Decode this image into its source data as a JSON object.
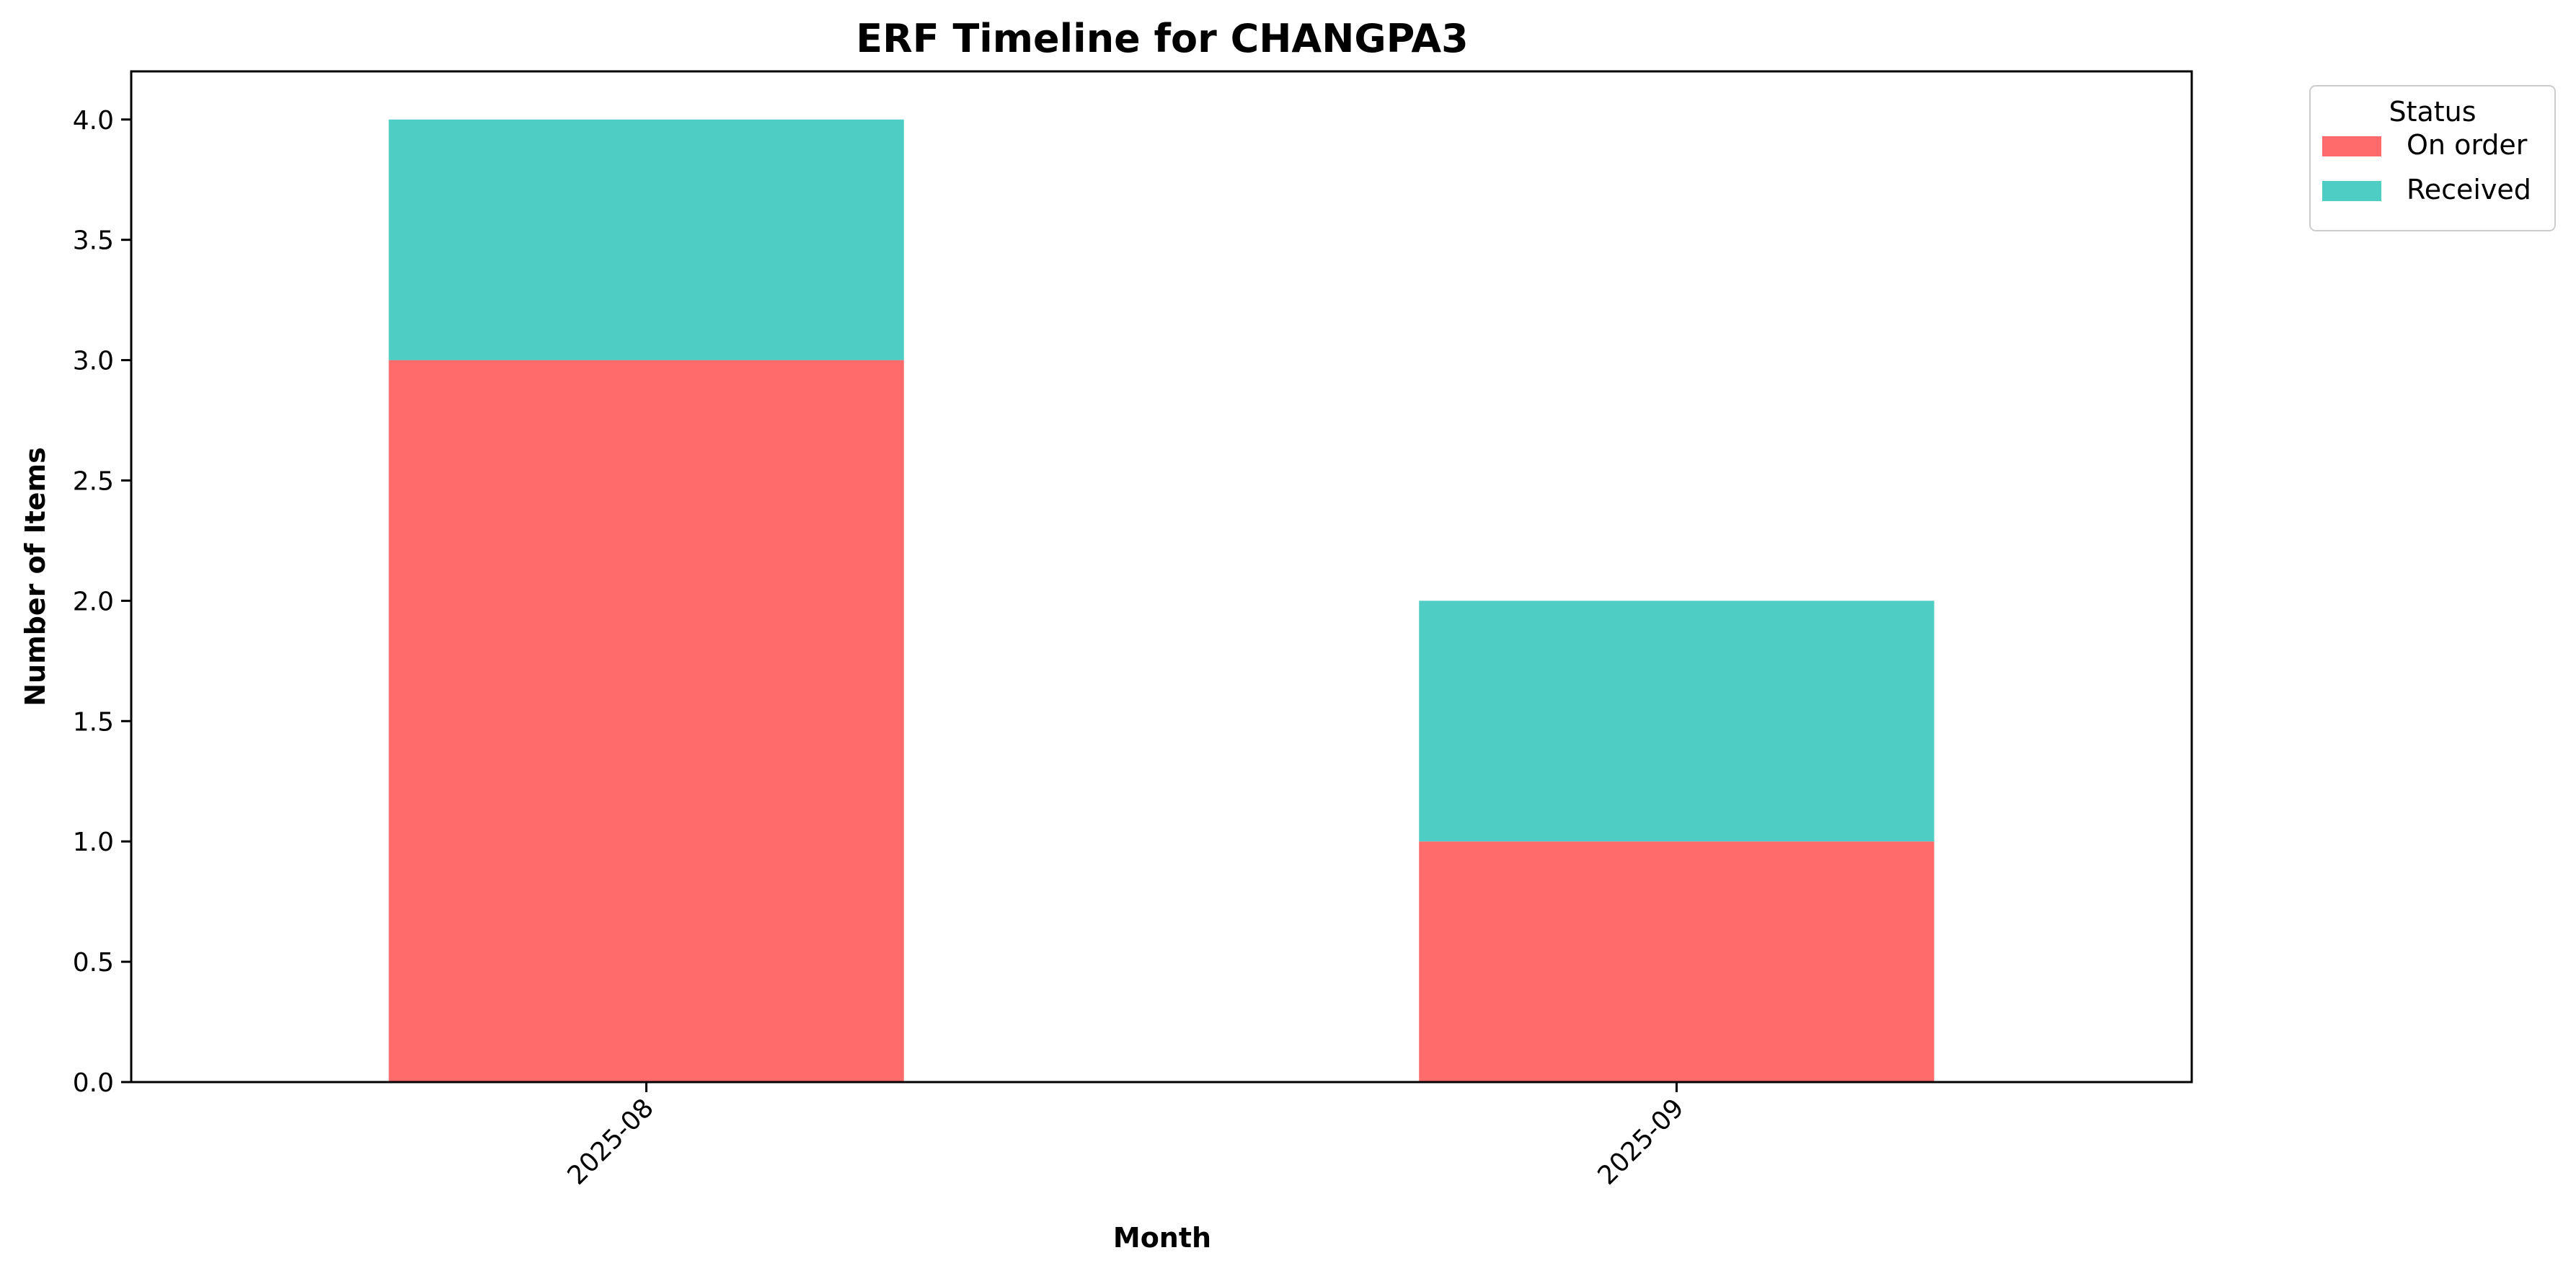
{
  "chart_data": {
    "type": "bar",
    "stacked": true,
    "title": "ERF Timeline for CHANGPA3",
    "xlabel": "Month",
    "ylabel": "Number of Items",
    "categories": [
      "2025-08",
      "2025-09"
    ],
    "series": [
      {
        "name": "On order",
        "values": [
          3,
          1
        ],
        "color": "#ff6b6b"
      },
      {
        "name": "Received",
        "values": [
          1,
          1
        ],
        "color": "#4ecdc4"
      }
    ],
    "ylim": [
      0,
      4.2
    ],
    "yticks": [
      0.0,
      0.5,
      1.0,
      1.5,
      2.0,
      2.5,
      3.0,
      3.5,
      4.0
    ],
    "ytick_labels": [
      "0.0",
      "0.5",
      "1.0",
      "1.5",
      "2.0",
      "2.5",
      "3.0",
      "3.5",
      "4.0"
    ],
    "xtick_rotation": 45,
    "grid": false,
    "legend": {
      "title": "Status",
      "placement": "outside-top-right"
    }
  }
}
